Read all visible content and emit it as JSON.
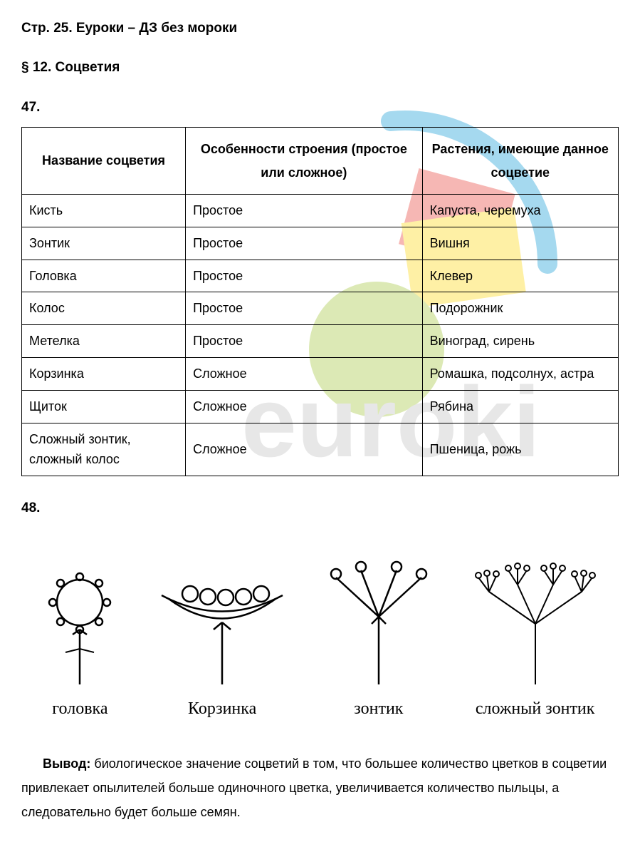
{
  "page": {
    "header": "Стр. 25. Еуроки – ДЗ без мороки",
    "section": "§ 12. Соцветия"
  },
  "exercise47": {
    "number": "47.",
    "table": {
      "columns": [
        "Название соцветия",
        "Особенности строения (простое или сложное)",
        "Растения, имеющие данное соцветие"
      ],
      "rows": [
        [
          "Кисть",
          "Простое",
          "Капуста, черемуха"
        ],
        [
          "Зонтик",
          "Простое",
          "Вишня"
        ],
        [
          "Головка",
          "Простое",
          "Клевер"
        ],
        [
          "Колос",
          "Простое",
          "Подорожник"
        ],
        [
          "Метелка",
          "Простое",
          "Виноград, сирень"
        ],
        [
          "Корзинка",
          "Сложное",
          "Ромашка, подсолнух, астра"
        ],
        [
          "Щиток",
          "Сложное",
          "Рябина"
        ],
        [
          "Сложный зонтик, сложный колос",
          "Сложное",
          "Пшеница, рожь"
        ]
      ]
    }
  },
  "exercise48": {
    "number": "48.",
    "diagrams": [
      {
        "label": "головка"
      },
      {
        "label": "Корзинка"
      },
      {
        "label": "зонтик"
      },
      {
        "label": "сложный зонтик"
      }
    ],
    "conclusion_label": "Вывод:",
    "conclusion_text": " биологическое значение соцветий в том, что большее количество цветков в соцветии привлекает опылителей больше одиночного цветка, увеличивается количество пыльцы, а следовательно будет больше семян."
  },
  "watermark": {
    "colors": {
      "red": "#e7332b",
      "yellow": "#fdd500",
      "green": "#9cc22f",
      "blue": "#0093d3",
      "gray": "#bdbdbd"
    },
    "text": "euroki"
  }
}
